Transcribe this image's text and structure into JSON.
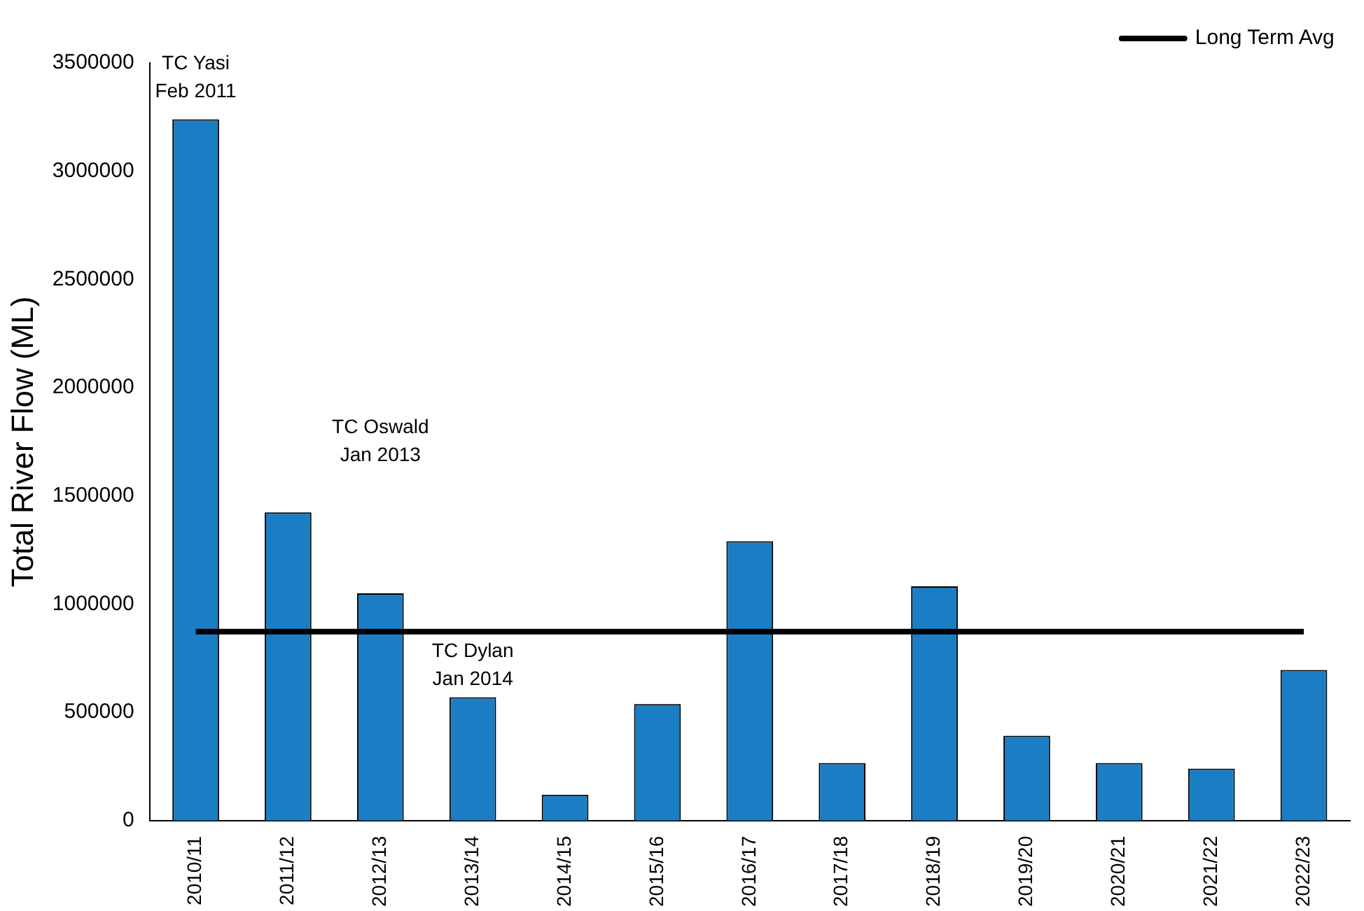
{
  "chart_data": {
    "type": "bar",
    "ylabel": "Total River Flow (ML)",
    "categories": [
      "2010/11",
      "2011/12",
      "2012/13",
      "2013/14",
      "2014/15",
      "2015/16",
      "2016/17",
      "2017/18",
      "2018/19",
      "2019/20",
      "2020/21",
      "2021/22",
      "2022/23"
    ],
    "series": [
      {
        "color": "#1b7dc4",
        "values": [
          3240000,
          1424000,
          1050000,
          570000,
          120000,
          538000,
          1291000,
          266000,
          1082000,
          392000,
          266000,
          240000,
          696000
        ]
      },
      {
        "type": "line",
        "name": "Long Term Avg",
        "color": "#000000",
        "marker": "none",
        "values": [
          873000,
          873000,
          873000,
          873000,
          873000,
          873000,
          873000,
          873000,
          873000,
          873000,
          873000,
          873000,
          873000
        ]
      }
    ],
    "ylim": [
      0,
      3500000
    ],
    "yticks": [
      0,
      500000,
      1000000,
      1500000,
      2000000,
      2500000,
      3000000,
      3500000
    ],
    "grid": false,
    "legend": "top right",
    "annotations": [
      "TC Yasi\nFeb 2011",
      "TC Oswald\nJan 2013",
      "TC Dylan\nJan 2014"
    ]
  }
}
